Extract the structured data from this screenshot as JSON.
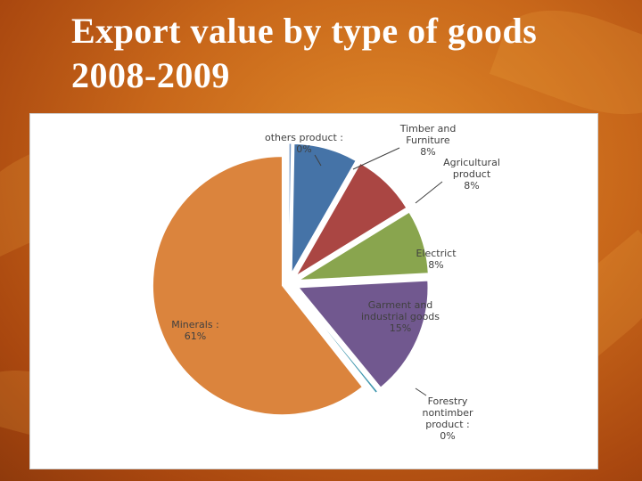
{
  "slide": {
    "title_line1": "Export value by type of goods",
    "title_line2": "2008-2009"
  },
  "chart_data": {
    "type": "pie",
    "exploded": true,
    "start_angle_deg": -90,
    "direction": "clockwise",
    "slices": [
      {
        "category": "others product",
        "value": 0.3,
        "color": "#7a9cc8",
        "label_lines": [
          "others product :",
          "0%"
        ]
      },
      {
        "category": "Timber and Furniture",
        "value": 8,
        "color": "#4573a7",
        "label_lines": [
          "Timber and",
          "Furniture",
          "8%"
        ]
      },
      {
        "category": "Agricultural product",
        "value": 8,
        "color": "#aa4643",
        "label_lines": [
          "Agricultural",
          "product",
          "8%"
        ]
      },
      {
        "category": "Electrict",
        "value": 8,
        "color": "#89a54e",
        "label_lines": [
          "Electrict",
          "8%"
        ]
      },
      {
        "category": "Garment and industrial goods",
        "value": 15,
        "color": "#71588f",
        "label_lines": [
          "Garment and",
          "industrial goods",
          "15%"
        ]
      },
      {
        "category": "Forestry nontimber product",
        "value": 0.3,
        "color": "#4198af",
        "label_lines": [
          "Forestry",
          "nontimber",
          "product :",
          "0%"
        ]
      },
      {
        "category": "Minerals",
        "value": 61,
        "color": "#db843d",
        "label_lines": [
          "Minerals :",
          "61%"
        ]
      }
    ]
  }
}
